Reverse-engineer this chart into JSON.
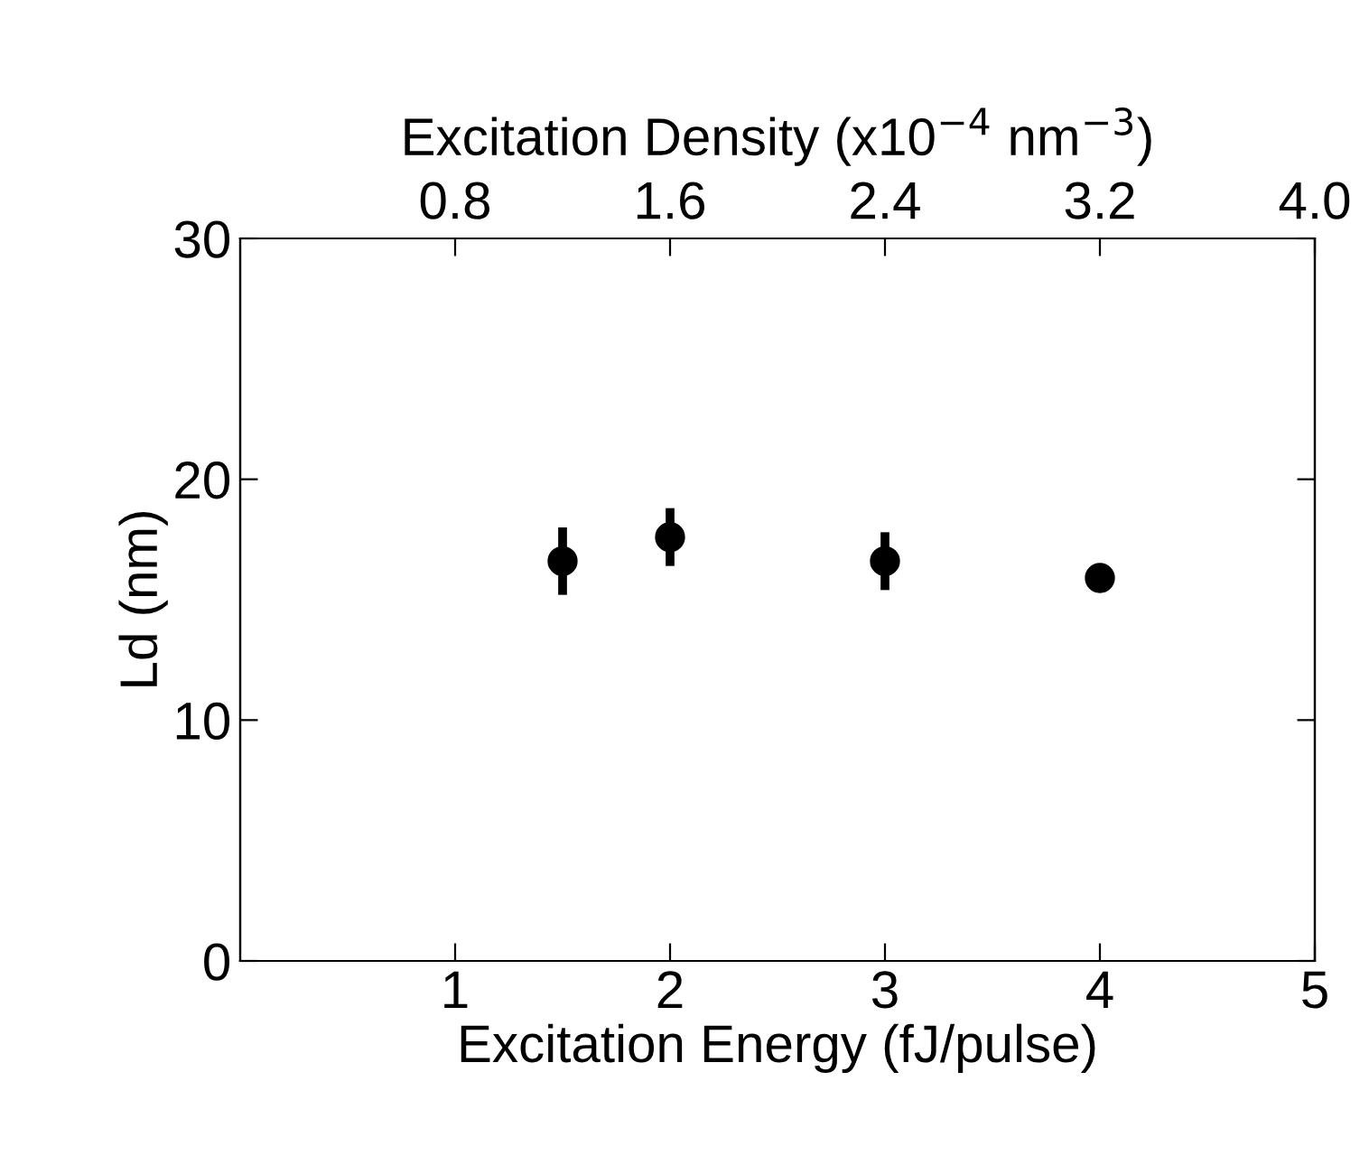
{
  "chart_data": {
    "type": "scatter",
    "xlabel": "Excitation Energy (fJ/pulse)",
    "ylabel": "Ld (nm)",
    "x2label": "Excitation Density (x10$^{−4}$ nm$^{−3}$)",
    "series": [
      {
        "color": "#000000",
        "x": [
          1.5,
          2,
          3,
          4
        ],
        "values": [
          16.6,
          17.6,
          16.6,
          15.9
        ],
        "errors": [
          1.4,
          1.2,
          1.2,
          0.6
        ]
      }
    ],
    "xlim": [
      0,
      5
    ],
    "xticks": [
      1,
      2,
      3,
      4,
      5
    ],
    "ylim": [
      0,
      30
    ],
    "yticks": [
      0,
      10,
      20,
      30
    ],
    "x2lim": [
      0,
      4.0
    ],
    "x2ticks": [
      0.8,
      1.6,
      2.4,
      3.2,
      {
        "value": 4.0,
        "label": "4.0"
      }
    ],
    "marker": "circle",
    "grid": false
  }
}
